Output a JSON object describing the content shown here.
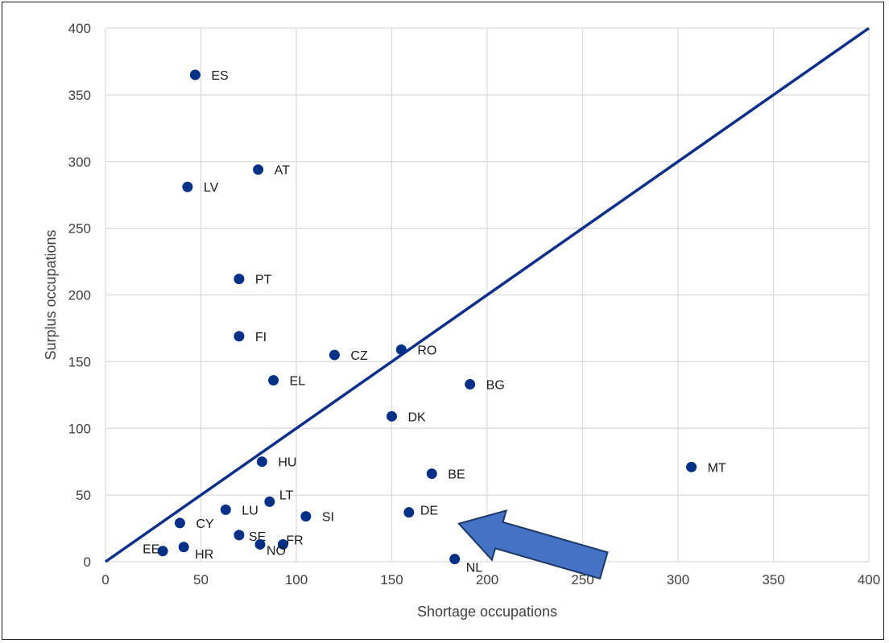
{
  "chart_data": {
    "type": "scatter",
    "title": "",
    "xlabel": "Shortage occupations",
    "ylabel": "Surplus occupations",
    "xlim": [
      0,
      400
    ],
    "ylim": [
      0,
      400
    ],
    "x_ticks": [
      0,
      50,
      100,
      150,
      200,
      250,
      300,
      350,
      400
    ],
    "y_ticks": [
      0,
      50,
      100,
      150,
      200,
      250,
      300,
      350,
      400
    ],
    "grid": true,
    "legend": "none",
    "colors": {
      "points": "#003087",
      "line": "#0b2f8a",
      "arrow_fill": "#4472c4",
      "arrow_stroke": "#1f3864",
      "grid": "#d9d9d9"
    },
    "reference_line": {
      "from": [
        0,
        0
      ],
      "to": [
        400,
        400
      ]
    },
    "arrow_points_to": "DE",
    "points": [
      {
        "label": "ES",
        "x": 47,
        "y": 365
      },
      {
        "label": "AT",
        "x": 80,
        "y": 294
      },
      {
        "label": "LV",
        "x": 43,
        "y": 281
      },
      {
        "label": "PT",
        "x": 70,
        "y": 212
      },
      {
        "label": "FI",
        "x": 70,
        "y": 169
      },
      {
        "label": "CZ",
        "x": 120,
        "y": 155
      },
      {
        "label": "RO",
        "x": 155,
        "y": 159
      },
      {
        "label": "EL",
        "x": 88,
        "y": 136
      },
      {
        "label": "BG",
        "x": 191,
        "y": 133
      },
      {
        "label": "DK",
        "x": 150,
        "y": 109
      },
      {
        "label": "HU",
        "x": 82,
        "y": 75
      },
      {
        "label": "MT",
        "x": 307,
        "y": 71
      },
      {
        "label": "BE",
        "x": 171,
        "y": 66
      },
      {
        "label": "LT",
        "x": 86,
        "y": 45
      },
      {
        "label": "LU",
        "x": 63,
        "y": 39
      },
      {
        "label": "SI",
        "x": 105,
        "y": 34
      },
      {
        "label": "DE",
        "x": 159,
        "y": 37
      },
      {
        "label": "CY",
        "x": 39,
        "y": 29
      },
      {
        "label": "SE",
        "x": 70,
        "y": 20
      },
      {
        "label": "FR",
        "x": 93,
        "y": 13
      },
      {
        "label": "NO",
        "x": 81,
        "y": 13
      },
      {
        "label": "EE",
        "x": 30,
        "y": 8
      },
      {
        "label": "HR",
        "x": 41,
        "y": 11
      },
      {
        "label": "NL",
        "x": 183,
        "y": 2
      }
    ]
  }
}
